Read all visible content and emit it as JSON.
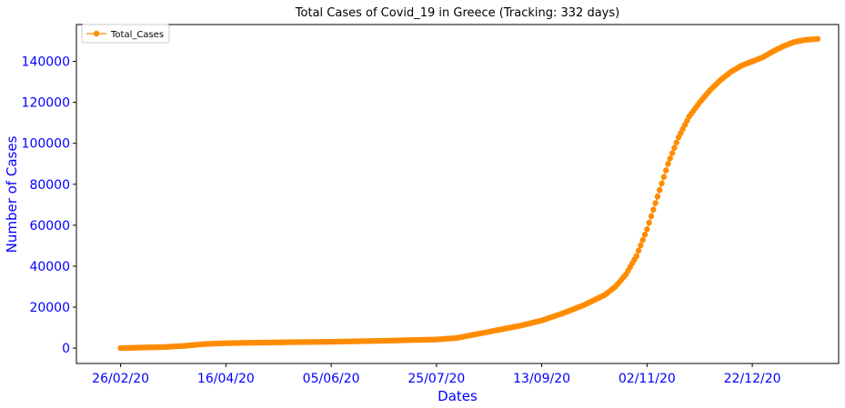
{
  "chart_data": {
    "type": "line",
    "title": "Total Cases of Covid_19 in Greece (Tracking: 332 days)",
    "xlabel": "Dates",
    "ylabel": "Number of Cases",
    "x_tick_labels": [
      "26/02/20",
      "16/04/20",
      "05/06/20",
      "25/07/20",
      "13/09/20",
      "02/11/20",
      "22/12/20"
    ],
    "x_tick_days": [
      0,
      50,
      100,
      150,
      200,
      250,
      300
    ],
    "y_ticks": [
      0,
      20000,
      40000,
      60000,
      80000,
      100000,
      120000,
      140000
    ],
    "xlim_days": [
      -21,
      341
    ],
    "ylim": [
      -7500,
      158000
    ],
    "grid": false,
    "legend_position": "top-left",
    "tick_label_color": "#0000ff",
    "axis_label_color": "#0000ff",
    "series": [
      {
        "name": "Total_Cases",
        "color": "#ff8c00",
        "marker": "circle",
        "x_days": [
          0,
          10,
          20,
          30,
          40,
          50,
          60,
          70,
          80,
          90,
          100,
          110,
          120,
          130,
          140,
          150,
          160,
          170,
          180,
          190,
          200,
          210,
          220,
          230,
          235,
          240,
          245,
          250,
          255,
          260,
          265,
          270,
          275,
          280,
          285,
          290,
          295,
          300,
          305,
          310,
          315,
          320,
          325,
          331
        ],
        "values": [
          0,
          300,
          500,
          1100,
          2000,
          2400,
          2600,
          2700,
          2900,
          3000,
          3100,
          3300,
          3500,
          3700,
          4000,
          4200,
          5000,
          7000,
          9000,
          11000,
          13500,
          17000,
          21000,
          26000,
          30000,
          36000,
          45000,
          58000,
          74000,
          90000,
          103000,
          113000,
          120000,
          126000,
          131000,
          135000,
          138000,
          140000,
          142000,
          145000,
          147500,
          149500,
          150500,
          151000
        ]
      }
    ]
  }
}
